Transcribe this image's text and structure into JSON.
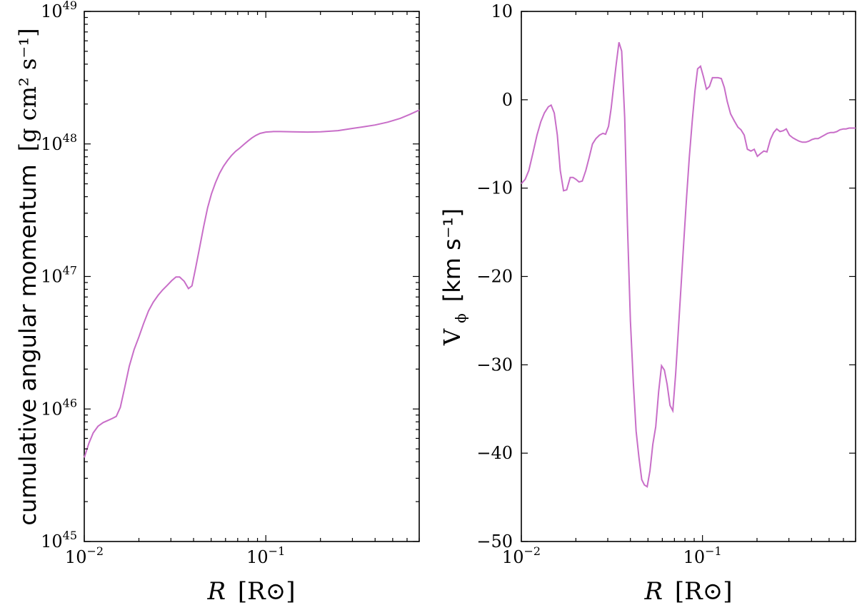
{
  "chart_data": [
    {
      "type": "line",
      "xscale": "log",
      "yscale": "log",
      "xlim": [
        0.01,
        0.7
      ],
      "ylim": [
        1e+45,
        1e+49
      ],
      "xlabel": {
        "italic": "R",
        "unit": "[R⊙]"
      },
      "ylabel": {
        "text": "cumulative angular momentum",
        "unit": "[g cm² s⁻¹]"
      },
      "xticks": [
        {
          "value": 0.01,
          "base": "10",
          "exp": "−2"
        },
        {
          "value": 0.1,
          "base": "10",
          "exp": "−1"
        }
      ],
      "yticks": [
        {
          "value": 1e+45,
          "base": "10",
          "exp": "45"
        },
        {
          "value": 1e+46,
          "base": "10",
          "exp": "46"
        },
        {
          "value": 1e+47,
          "base": "10",
          "exp": "47"
        },
        {
          "value": 1e+48,
          "base": "10",
          "exp": "48"
        },
        {
          "value": 1e+49,
          "base": "10",
          "exp": "49"
        }
      ],
      "series": [
        {
          "name": "cumulative angular momentum",
          "color": "#c86ec8",
          "x": [
            0.01,
            0.0106,
            0.0112,
            0.0119,
            0.0127,
            0.0135,
            0.0143,
            0.015,
            0.0158,
            0.0167,
            0.0177,
            0.0188,
            0.02,
            0.0212,
            0.0226,
            0.024,
            0.0255,
            0.027,
            0.0287,
            0.0303,
            0.032,
            0.0335,
            0.0355,
            0.0375,
            0.0392,
            0.041,
            0.0432,
            0.0455,
            0.0478,
            0.0502,
            0.0528,
            0.0556,
            0.0585,
            0.0615,
            0.0648,
            0.0682,
            0.0718,
            0.0756,
            0.0796,
            0.0838,
            0.0882,
            0.0929,
            0.1,
            0.11,
            0.12,
            0.14,
            0.17,
            0.2,
            0.25,
            0.3,
            0.35,
            0.4,
            0.47,
            0.55,
            0.62,
            0.7
          ],
          "y": [
            4.3e+45,
            5.5e+45,
            6.6e+45,
            7.4e+45,
            7.9e+45,
            8.2e+45,
            8.5e+45,
            8.8e+45,
            1.03e+46,
            1.45e+46,
            2.1e+46,
            2.8e+46,
            3.5e+46,
            4.4e+46,
            5.5e+46,
            6.4e+46,
            7.2e+46,
            7.9e+46,
            8.6e+46,
            9.3e+46,
            9.9e+46,
            9.9e+46,
            9.2e+46,
            8.1e+46,
            8.5e+46,
            1.15e+47,
            1.65e+47,
            2.4e+47,
            3.3e+47,
            4.2e+47,
            5.1e+47,
            6e+47,
            6.8e+47,
            7.5e+47,
            8.2e+47,
            8.8e+47,
            9.3e+47,
            9.9e+47,
            1.05e+48,
            1.11e+48,
            1.16e+48,
            1.2e+48,
            1.23e+48,
            1.24e+48,
            1.24e+48,
            1.235e+48,
            1.23e+48,
            1.235e+48,
            1.26e+48,
            1.31e+48,
            1.35e+48,
            1.39e+48,
            1.46e+48,
            1.56e+48,
            1.67e+48,
            1.8e+48
          ]
        }
      ]
    },
    {
      "type": "line",
      "xscale": "log",
      "yscale": "linear",
      "xlim": [
        0.01,
        0.7
      ],
      "ylim": [
        -50,
        10
      ],
      "xlabel": {
        "italic": "R",
        "unit": "[R⊙]"
      },
      "ylabel": {
        "text": "V",
        "sub": "ϕ",
        "unit": "[km s⁻¹]"
      },
      "xticks": [
        {
          "value": 0.01,
          "base": "10",
          "exp": "−2"
        },
        {
          "value": 0.1,
          "base": "10",
          "exp": "−1"
        }
      ],
      "yticks": [
        {
          "value": 10,
          "label": "10"
        },
        {
          "value": 0,
          "label": "0"
        },
        {
          "value": -10,
          "label": "−10"
        },
        {
          "value": -20,
          "label": "−20"
        },
        {
          "value": -30,
          "label": "−30"
        },
        {
          "value": -40,
          "label": "−40"
        },
        {
          "value": -50,
          "label": "−50"
        }
      ],
      "series": [
        {
          "name": "V_phi",
          "color": "#c86ec8",
          "x": [
            0.01,
            0.0105,
            0.011,
            0.0116,
            0.0122,
            0.0128,
            0.0134,
            0.0141,
            0.0146,
            0.0152,
            0.0158,
            0.0164,
            0.0171,
            0.0178,
            0.0186,
            0.0193,
            0.02,
            0.0208,
            0.0217,
            0.0227,
            0.0237,
            0.0247,
            0.0258,
            0.027,
            0.0282,
            0.0292,
            0.0303,
            0.0313,
            0.0323,
            0.0334,
            0.0346,
            0.0358,
            0.0372,
            0.0385,
            0.04,
            0.0415,
            0.043,
            0.0446,
            0.0462,
            0.0478,
            0.0495,
            0.0513,
            0.0532,
            0.0552,
            0.0573,
            0.0594,
            0.0616,
            0.0638,
            0.0662,
            0.0686,
            0.0711,
            0.0736,
            0.0762,
            0.0789,
            0.0817,
            0.0846,
            0.0877,
            0.0909,
            0.094,
            0.0975,
            0.1012,
            0.1052,
            0.1092,
            0.1135,
            0.1175,
            0.122,
            0.127,
            0.132,
            0.137,
            0.143,
            0.15,
            0.157,
            0.163,
            0.17,
            0.177,
            0.185,
            0.193,
            0.201,
            0.209,
            0.218,
            0.227,
            0.237,
            0.247,
            0.257,
            0.268,
            0.279,
            0.29,
            0.302,
            0.315,
            0.328,
            0.342,
            0.356,
            0.371,
            0.386,
            0.402,
            0.418,
            0.435,
            0.453,
            0.471,
            0.49,
            0.51,
            0.53,
            0.552,
            0.574,
            0.6,
            0.62,
            0.645,
            0.67,
            0.7
          ],
          "y": [
            -9.5,
            -9.0,
            -8.0,
            -6.0,
            -4.0,
            -2.5,
            -1.5,
            -0.8,
            -0.6,
            -1.5,
            -4.0,
            -8.0,
            -10.3,
            -10.2,
            -8.8,
            -8.8,
            -9.0,
            -9.3,
            -9.2,
            -8.0,
            -6.5,
            -5.0,
            -4.4,
            -4.0,
            -3.8,
            -3.9,
            -3.0,
            -1.0,
            1.5,
            4.0,
            6.5,
            5.5,
            -2.0,
            -14.0,
            -25.0,
            -32.0,
            -37.5,
            -40.5,
            -43.0,
            -43.6,
            -43.8,
            -42.0,
            -39.0,
            -37.0,
            -33.0,
            -30.1,
            -30.6,
            -32.2,
            -34.6,
            -35.2,
            -31.0,
            -26.0,
            -21.0,
            -16.0,
            -11.0,
            -6.5,
            -2.5,
            1.0,
            3.5,
            3.8,
            2.6,
            1.2,
            1.5,
            2.5,
            2.5,
            2.5,
            2.4,
            1.4,
            -0.2,
            -1.6,
            -2.4,
            -3.1,
            -3.4,
            -4.0,
            -5.6,
            -5.8,
            -5.6,
            -6.4,
            -6.1,
            -5.8,
            -5.9,
            -4.5,
            -3.7,
            -3.3,
            -3.6,
            -3.5,
            -3.3,
            -4.0,
            -4.3,
            -4.5,
            -4.7,
            -4.8,
            -4.8,
            -4.7,
            -4.5,
            -4.4,
            -4.4,
            -4.2,
            -4.0,
            -3.8,
            -3.7,
            -3.7,
            -3.6,
            -3.4,
            -3.3,
            -3.3,
            -3.2,
            -3.2,
            -3.2
          ]
        }
      ]
    }
  ]
}
